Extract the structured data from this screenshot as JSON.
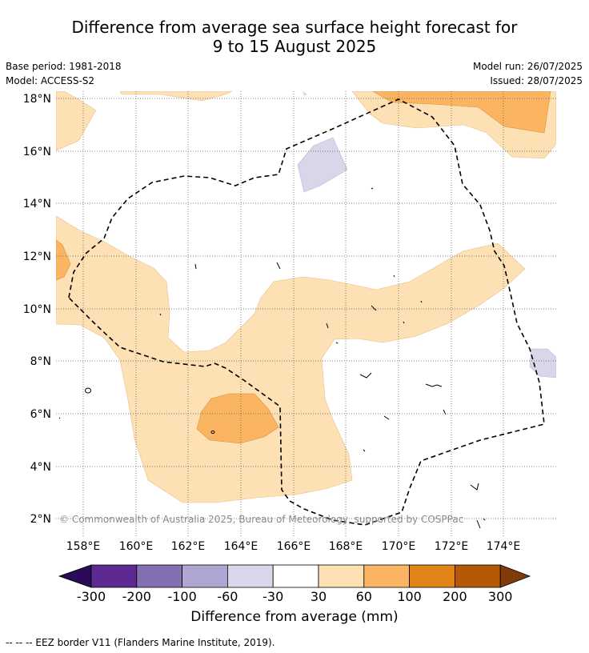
{
  "title": {
    "line1": "Difference from average sea surface height forecast for",
    "line2": "9 to 15 August 2025"
  },
  "meta": {
    "base_period": "Base period: 1981-2018",
    "model": "Model: ACCESS-S2",
    "model_run": "Model run: 26/07/2025",
    "issued": "Issued: 28/07/2025"
  },
  "map": {
    "lon_labels": [
      "158°E",
      "160°E",
      "162°E",
      "164°E",
      "166°E",
      "168°E",
      "170°E",
      "172°E",
      "174°E"
    ],
    "lat_labels": [
      "18°N",
      "16°N",
      "14°N",
      "12°N",
      "10°N",
      "8°N",
      "6°N",
      "4°N",
      "2°N"
    ],
    "copyright": "© Commonwealth of Australia 2025, Bureau of Meteorology, supported by COSPPac",
    "gridlines": true,
    "eez_border_style": "dashed black"
  },
  "colorbar": {
    "labels": [
      "-300",
      "-200",
      "-100",
      "-60",
      "-30",
      "30",
      "60",
      "100",
      "200",
      "300"
    ],
    "colors": [
      "#2b0a57",
      "#5c2a91",
      "#8470b0",
      "#b0a6d2",
      "#d8d7ea",
      "#ffffff",
      "#fde0b4",
      "#fab462",
      "#e28517",
      "#b45806",
      "#7f3b08"
    ],
    "title": "Difference from average (mm)"
  },
  "footnote": "--  --  -- EEZ border V11 (Flanders Marine Institute, 2019)."
}
